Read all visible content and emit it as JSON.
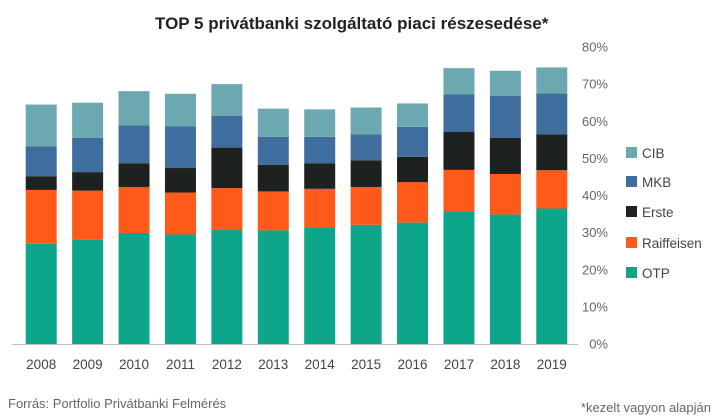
{
  "chart_data": {
    "type": "bar",
    "stacked": true,
    "title": "TOP 5 privátbanki szolgáltató piaci részesedése*",
    "source": "Forrás: Portfolio Privátbanki Felmérés",
    "footnote": "*kezelt vagyon alapján",
    "categories": [
      "2008",
      "2009",
      "2010",
      "2011",
      "2012",
      "2013",
      "2014",
      "2015",
      "2016",
      "2017",
      "2018",
      "2019"
    ],
    "ylim": [
      0,
      80
    ],
    "yticks": [
      0,
      10,
      20,
      30,
      40,
      50,
      60,
      70,
      80
    ],
    "ytick_labels": [
      "0%",
      "10%",
      "20%",
      "30%",
      "40%",
      "50%",
      "60%",
      "70%",
      "80%"
    ],
    "y_axis_position": "right",
    "grid": false,
    "legend_position": "right",
    "series": [
      {
        "name": "OTP",
        "color": "#0ea68a",
        "values": [
          27.0,
          28.2,
          29.9,
          29.5,
          30.7,
          30.6,
          31.5,
          32.1,
          32.7,
          35.7,
          34.9,
          36.5
        ]
      },
      {
        "name": "Raiffeisen",
        "color": "#ff5a1a",
        "values": [
          14.5,
          13.1,
          12.4,
          11.3,
          11.3,
          10.5,
          10.3,
          10.2,
          10.9,
          11.2,
          10.9,
          10.3
        ]
      },
      {
        "name": "Erste",
        "color": "#1d211f",
        "values": [
          3.7,
          5.0,
          6.4,
          6.6,
          10.9,
          7.2,
          6.9,
          7.2,
          6.8,
          10.2,
          9.7,
          9.7
        ]
      },
      {
        "name": "MKB",
        "color": "#3f6e9e",
        "values": [
          8.0,
          9.2,
          10.2,
          11.2,
          8.6,
          7.5,
          7.1,
          7.0,
          8.1,
          10.1,
          11.4,
          11.0
        ]
      },
      {
        "name": "CIB",
        "color": "#6ba8b0",
        "values": [
          11.3,
          9.5,
          9.2,
          8.8,
          8.5,
          7.6,
          7.4,
          7.2,
          6.3,
          7.1,
          6.7,
          7.0
        ]
      }
    ],
    "legend_order": [
      "CIB",
      "MKB",
      "Erste",
      "Raiffeisen",
      "OTP"
    ]
  }
}
